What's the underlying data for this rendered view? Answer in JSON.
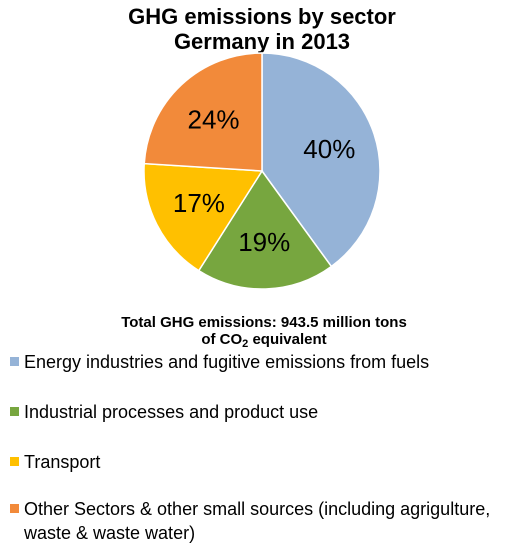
{
  "chart_data": {
    "type": "pie",
    "title": "GHG emissions by sector",
    "subtitle": "Germany in 2013",
    "note_line1": "Total GHG emissions: 943.5 million tons",
    "note_line2_pre": "of CO",
    "note_line2_sub": "2",
    "note_line2_post": " equivalent",
    "legend_position": "bottom",
    "series": [
      {
        "name": "Energy industries and fugitive emissions from fuels",
        "value": 40,
        "label": "40%",
        "color": "#95b3d7"
      },
      {
        "name": "Industrial processes and product use",
        "value": 19,
        "label": "19%",
        "color": "#77a63f"
      },
      {
        "name": "Transport",
        "value": 17,
        "label": "17%",
        "color": "#ffc000"
      },
      {
        "name": "Other Sectors & other small sources (including agrigulture, waste & waste water)",
        "value": 24,
        "label": "24%",
        "color": "#f28a3a"
      }
    ]
  }
}
